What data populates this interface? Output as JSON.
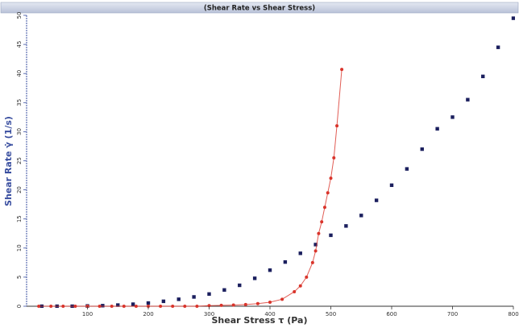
{
  "chart_data": {
    "type": "scatter",
    "title": "(Shear Rate vs Shear Stress)",
    "x_label": "Shear Stress τ (Pa)",
    "y_label": "Shear Rate γ̇ (1/s)",
    "xlim": [
      0,
      800
    ],
    "ylim": [
      0,
      50
    ],
    "xticks": [
      100,
      200,
      300,
      400,
      500,
      600,
      700,
      800
    ],
    "yticks": [
      0,
      5,
      10,
      15,
      20,
      25,
      30,
      35,
      40,
      45,
      50
    ],
    "series": [
      {
        "color": "#1b1f5e",
        "marker": "square",
        "line": false,
        "x": [
          25,
          50,
          75,
          100,
          125,
          150,
          175,
          200,
          225,
          250,
          275,
          300,
          325,
          350,
          375,
          400,
          425,
          450,
          475,
          500,
          525,
          550,
          575,
          600,
          625,
          650,
          675,
          700,
          725,
          750,
          775,
          800
        ],
        "values": [
          0,
          0,
          0,
          0.05,
          0.1,
          0.2,
          0.35,
          0.55,
          0.85,
          1.2,
          1.6,
          2.1,
          2.8,
          3.6,
          4.8,
          6.2,
          7.6,
          9.1,
          10.6,
          12.2,
          13.8,
          15.6,
          18.2,
          20.8,
          23.6,
          27,
          30.5,
          32.5,
          35.5,
          39.5,
          44.5,
          49.5
        ]
      },
      {
        "color": "#d9342b",
        "marker": "circle",
        "line": true,
        "x": [
          20,
          40,
          60,
          80,
          100,
          120,
          140,
          160,
          180,
          200,
          220,
          240,
          260,
          280,
          300,
          320,
          340,
          360,
          380,
          400,
          420,
          440,
          450,
          460,
          470,
          475,
          480,
          485,
          490,
          495,
          500,
          505,
          510,
          518
        ],
        "values": [
          0,
          0,
          0,
          0,
          0,
          0,
          0,
          0,
          0,
          0,
          0,
          0,
          0,
          0,
          0.1,
          0.15,
          0.2,
          0.3,
          0.45,
          0.7,
          1.2,
          2.5,
          3.5,
          5,
          7.5,
          9.5,
          12.5,
          14.5,
          17,
          19.5,
          22,
          25.5,
          31,
          40.7
        ]
      }
    ]
  }
}
